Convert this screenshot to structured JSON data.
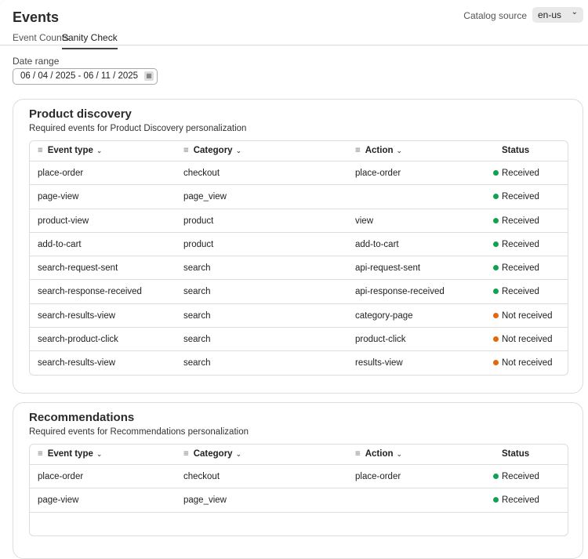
{
  "header": {
    "title": "Events",
    "tabs": [
      {
        "label": "Event Counts"
      },
      {
        "label": "Sanity Check",
        "active": true
      }
    ],
    "catalog_label": "Catalog source",
    "catalog_value": "en-us"
  },
  "date_range": {
    "label": "Date range",
    "value": "06 / 04 / 2025 - 06 / 11 / 2025"
  },
  "colors": {
    "received": "#12a150",
    "not_received": "#e2680e"
  },
  "columns": [
    "Event type",
    "Category",
    "Action",
    "Status"
  ],
  "sections": [
    {
      "title": "Product discovery",
      "subtitle": "Required events for Product Discovery personalization",
      "rows": [
        {
          "event": "place-order",
          "category": "checkout",
          "action": "place-order",
          "status": "Received"
        },
        {
          "event": "page-view",
          "category": "page_view",
          "action": "",
          "status": "Received"
        },
        {
          "event": "product-view",
          "category": "product",
          "action": "view",
          "status": "Received"
        },
        {
          "event": "add-to-cart",
          "category": "product",
          "action": "add-to-cart",
          "status": "Received"
        },
        {
          "event": "search-request-sent",
          "category": "search",
          "action": "api-request-sent",
          "status": "Received"
        },
        {
          "event": "search-response-received",
          "category": "search",
          "action": "api-response-received",
          "status": "Received"
        },
        {
          "event": "search-results-view",
          "category": "search",
          "action": "category-page",
          "status": "Not received"
        },
        {
          "event": "search-product-click",
          "category": "search",
          "action": "product-click",
          "status": "Not received"
        },
        {
          "event": "search-results-view",
          "category": "search",
          "action": "results-view",
          "status": "Not received"
        }
      ]
    },
    {
      "title": "Recommendations",
      "subtitle": "Required events for Recommendations personalization",
      "rows": [
        {
          "event": "place-order",
          "category": "checkout",
          "action": "place-order",
          "status": "Received"
        },
        {
          "event": "page-view",
          "category": "page_view",
          "action": "",
          "status": "Received"
        },
        {
          "event": "",
          "category": "",
          "action": "",
          "status": ""
        }
      ]
    }
  ]
}
